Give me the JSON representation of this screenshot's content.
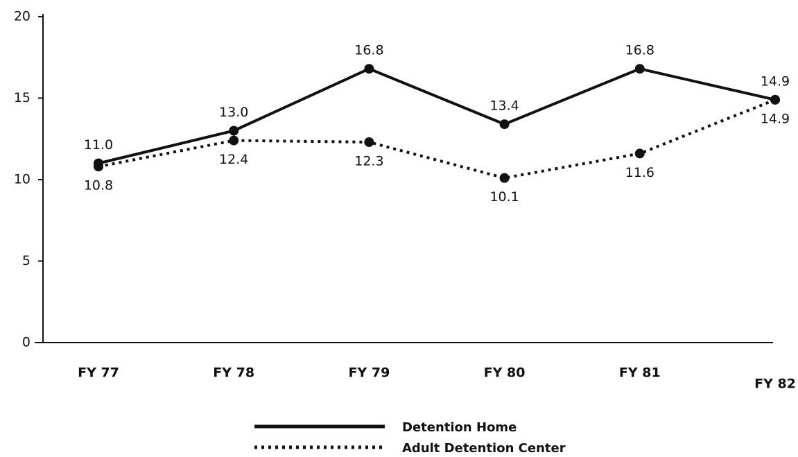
{
  "chart_data": {
    "type": "line",
    "categories": [
      "FY 77",
      "FY 78",
      "FY 79",
      "FY 80",
      "FY 81",
      "FY 82"
    ],
    "series": [
      {
        "name": "Detention Home",
        "color": "#111111",
        "style": "solid",
        "values": [
          11,
          13,
          16.8,
          13.4,
          16.8,
          14.9
        ],
        "value_labels": [
          "11.0",
          "13.0",
          "16.8",
          "13.4",
          "16.8",
          "14.9"
        ]
      },
      {
        "name": "Adult Detention Center",
        "color": "#111111",
        "style": "dotted",
        "values": [
          10.8,
          12.4,
          12.3,
          10.1,
          11.6,
          14.9
        ]
      }
    ],
    "ylim": [
      0,
      20
    ],
    "yticks": [
      0,
      5,
      10,
      15,
      20
    ],
    "grid": false
  }
}
